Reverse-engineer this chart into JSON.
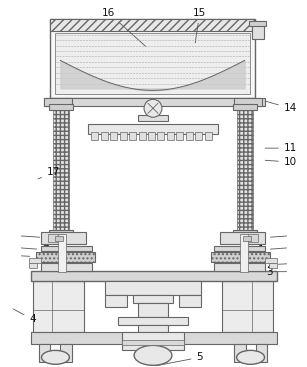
{
  "fig_width": 3.07,
  "fig_height": 3.67,
  "dpi": 100,
  "bg_color": "#ffffff",
  "lc": "#666666",
  "lc2": "#888888",
  "fc_light": "#f0f0f0",
  "fc_mid": "#e0e0e0",
  "fc_dark": "#cccccc",
  "fc_hatch": "#d8d8d8"
}
